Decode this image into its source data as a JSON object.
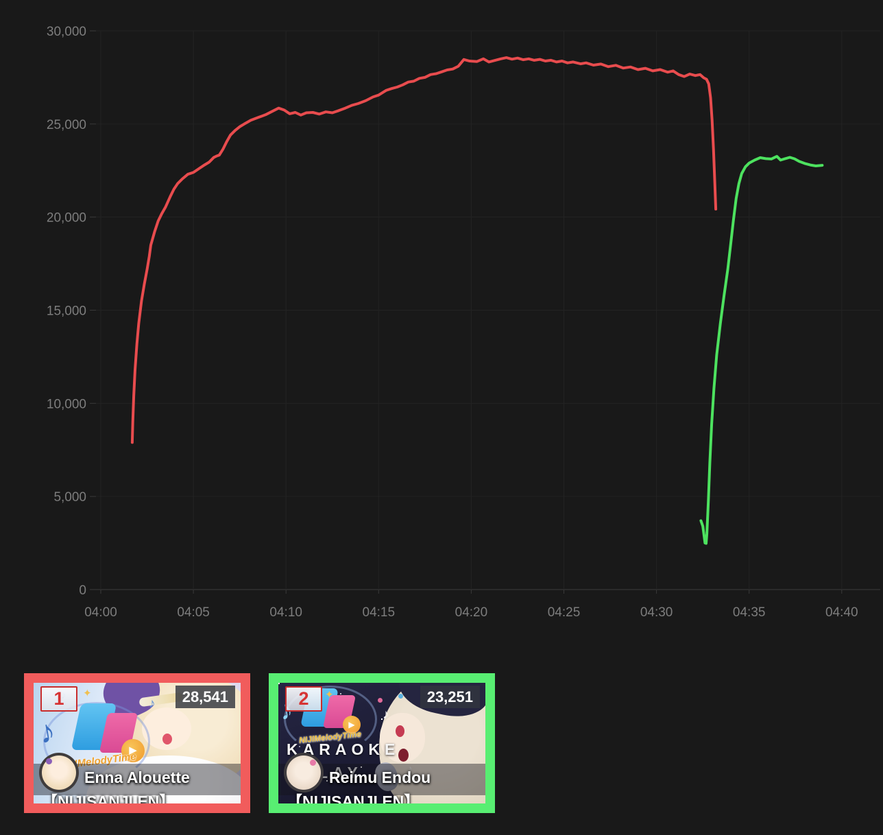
{
  "colors": {
    "background": "#191919",
    "grid_line": "#232323",
    "axis_line": "#3a3a3a",
    "axis_label": "#7d7d7d",
    "red_line": "#e84c4e",
    "green_line": "#4de25f",
    "red_accent": "#f15c5c",
    "green_accent": "#58ee72"
  },
  "chart_data": {
    "type": "line",
    "grid": true,
    "legend": "none",
    "x_axis": {
      "unit": "time (HH:MM)",
      "ticks": [
        {
          "min": 0,
          "label": "04:00"
        },
        {
          "min": 5,
          "label": "04:05"
        },
        {
          "min": 10,
          "label": "04:10"
        },
        {
          "min": 15,
          "label": "04:15"
        },
        {
          "min": 20,
          "label": "04:20"
        },
        {
          "min": 25,
          "label": "04:25"
        },
        {
          "min": 30,
          "label": "04:30"
        },
        {
          "min": 35,
          "label": "04:35"
        },
        {
          "min": 40,
          "label": "04:40"
        }
      ]
    },
    "y_axis": {
      "unit": "viewers",
      "min": 0,
      "max": 30000,
      "ticks": [
        {
          "value": 0,
          "label": "0"
        },
        {
          "value": 5000,
          "label": "5,000"
        },
        {
          "value": 10000,
          "label": "10,000"
        },
        {
          "value": 15000,
          "label": "15,000"
        },
        {
          "value": 20000,
          "label": "20,000"
        },
        {
          "value": 25000,
          "label": "25,000"
        },
        {
          "value": 30000,
          "label": "30,000"
        }
      ]
    },
    "series": [
      {
        "name": "Enna Alouette",
        "color": "#e84c4e",
        "points": [
          [
            1.7,
            7900
          ],
          [
            1.73,
            9000
          ],
          [
            1.78,
            10400
          ],
          [
            1.85,
            11800
          ],
          [
            1.95,
            13200
          ],
          [
            2.05,
            14300
          ],
          [
            2.2,
            15500
          ],
          [
            2.35,
            16400
          ],
          [
            2.5,
            17200
          ],
          [
            2.62,
            17900
          ],
          [
            2.7,
            18500
          ],
          [
            2.9,
            19200
          ],
          [
            3.1,
            19800
          ],
          [
            3.3,
            20200
          ],
          [
            3.5,
            20550
          ],
          [
            3.75,
            21100
          ],
          [
            3.95,
            21500
          ],
          [
            4.15,
            21800
          ],
          [
            4.4,
            22050
          ],
          [
            4.7,
            22300
          ],
          [
            5.0,
            22400
          ],
          [
            5.3,
            22600
          ],
          [
            5.6,
            22800
          ],
          [
            5.85,
            22950
          ],
          [
            6.1,
            23200
          ],
          [
            6.25,
            23280
          ],
          [
            6.4,
            23330
          ],
          [
            6.6,
            23650
          ],
          [
            6.8,
            24050
          ],
          [
            7.0,
            24400
          ],
          [
            7.25,
            24650
          ],
          [
            7.5,
            24850
          ],
          [
            7.75,
            25000
          ],
          [
            8.1,
            25200
          ],
          [
            8.5,
            25350
          ],
          [
            8.9,
            25500
          ],
          [
            9.3,
            25700
          ],
          [
            9.6,
            25850
          ],
          [
            9.9,
            25750
          ],
          [
            10.2,
            25550
          ],
          [
            10.5,
            25620
          ],
          [
            10.8,
            25480
          ],
          [
            11.1,
            25600
          ],
          [
            11.45,
            25620
          ],
          [
            11.8,
            25530
          ],
          [
            12.15,
            25650
          ],
          [
            12.5,
            25600
          ],
          [
            12.85,
            25720
          ],
          [
            13.2,
            25850
          ],
          [
            13.55,
            26000
          ],
          [
            13.9,
            26100
          ],
          [
            14.3,
            26250
          ],
          [
            14.7,
            26450
          ],
          [
            15.0,
            26550
          ],
          [
            15.4,
            26800
          ],
          [
            15.7,
            26900
          ],
          [
            16.0,
            26980
          ],
          [
            16.3,
            27100
          ],
          [
            16.6,
            27250
          ],
          [
            16.9,
            27300
          ],
          [
            17.2,
            27450
          ],
          [
            17.5,
            27500
          ],
          [
            17.8,
            27650
          ],
          [
            18.1,
            27700
          ],
          [
            18.4,
            27800
          ],
          [
            18.7,
            27900
          ],
          [
            19.0,
            27950
          ],
          [
            19.3,
            28100
          ],
          [
            19.6,
            28460
          ],
          [
            19.9,
            28380
          ],
          [
            20.3,
            28350
          ],
          [
            20.65,
            28500
          ],
          [
            20.95,
            28330
          ],
          [
            21.3,
            28420
          ],
          [
            21.6,
            28500
          ],
          [
            21.9,
            28560
          ],
          [
            22.2,
            28480
          ],
          [
            22.5,
            28540
          ],
          [
            22.8,
            28450
          ],
          [
            23.1,
            28500
          ],
          [
            23.4,
            28420
          ],
          [
            23.7,
            28470
          ],
          [
            24.0,
            28380
          ],
          [
            24.3,
            28420
          ],
          [
            24.6,
            28330
          ],
          [
            24.9,
            28380
          ],
          [
            25.2,
            28280
          ],
          [
            25.5,
            28330
          ],
          [
            25.9,
            28230
          ],
          [
            26.2,
            28280
          ],
          [
            26.6,
            28160
          ],
          [
            27.0,
            28220
          ],
          [
            27.4,
            28080
          ],
          [
            27.8,
            28150
          ],
          [
            28.2,
            28000
          ],
          [
            28.6,
            28060
          ],
          [
            29.0,
            27920
          ],
          [
            29.4,
            27990
          ],
          [
            29.8,
            27850
          ],
          [
            30.2,
            27920
          ],
          [
            30.6,
            27780
          ],
          [
            30.9,
            27850
          ],
          [
            31.2,
            27650
          ],
          [
            31.5,
            27550
          ],
          [
            31.8,
            27680
          ],
          [
            32.1,
            27600
          ],
          [
            32.35,
            27650
          ],
          [
            32.55,
            27480
          ],
          [
            32.7,
            27400
          ],
          [
            32.82,
            27150
          ],
          [
            32.92,
            26400
          ],
          [
            33.0,
            25200
          ],
          [
            33.08,
            23600
          ],
          [
            33.15,
            21800
          ],
          [
            33.2,
            20430
          ]
        ]
      },
      {
        "name": "Reimu Endou",
        "color": "#4de25f",
        "points": [
          [
            32.4,
            3700
          ],
          [
            32.5,
            3400
          ],
          [
            32.62,
            2500
          ],
          [
            32.68,
            2480
          ],
          [
            32.72,
            3000
          ],
          [
            32.8,
            4800
          ],
          [
            32.88,
            6800
          ],
          [
            32.98,
            8900
          ],
          [
            33.1,
            10800
          ],
          [
            33.25,
            12600
          ],
          [
            33.45,
            14300
          ],
          [
            33.65,
            15800
          ],
          [
            33.85,
            17200
          ],
          [
            34.0,
            18500
          ],
          [
            34.15,
            19800
          ],
          [
            34.3,
            21000
          ],
          [
            34.45,
            21800
          ],
          [
            34.6,
            22340
          ],
          [
            34.8,
            22700
          ],
          [
            35.0,
            22900
          ],
          [
            35.3,
            23060
          ],
          [
            35.6,
            23190
          ],
          [
            35.9,
            23140
          ],
          [
            36.2,
            23120
          ],
          [
            36.5,
            23260
          ],
          [
            36.7,
            23060
          ],
          [
            36.95,
            23140
          ],
          [
            37.2,
            23210
          ],
          [
            37.45,
            23130
          ],
          [
            37.7,
            22990
          ],
          [
            38.0,
            22880
          ],
          [
            38.3,
            22800
          ],
          [
            38.6,
            22750
          ],
          [
            38.95,
            22780
          ]
        ]
      }
    ]
  },
  "cards": [
    {
      "rank": "1",
      "viewer_count": "28,541",
      "channel_name": "Enna Alouette",
      "video_title": "【NIJISANJI EN】",
      "accent_color": "#f15c5c",
      "logo_text": "NIJIMelodyTime",
      "play_icon": "▶",
      "note_icon": "♪",
      "sparkle_icon": "✦"
    },
    {
      "rank": "2",
      "viewer_count": "23,251",
      "channel_name": "Reimu Endou",
      "video_title": "【NIJISANJI EN】",
      "accent_color": "#58ee72",
      "logo_text": "NIJIMelodyTime",
      "karaoke_text": "KARAOKE",
      "relay_text": "RELAY",
      "play_icon": "▶",
      "note_icon": "♪",
      "sparkle_icon": "✦"
    }
  ]
}
